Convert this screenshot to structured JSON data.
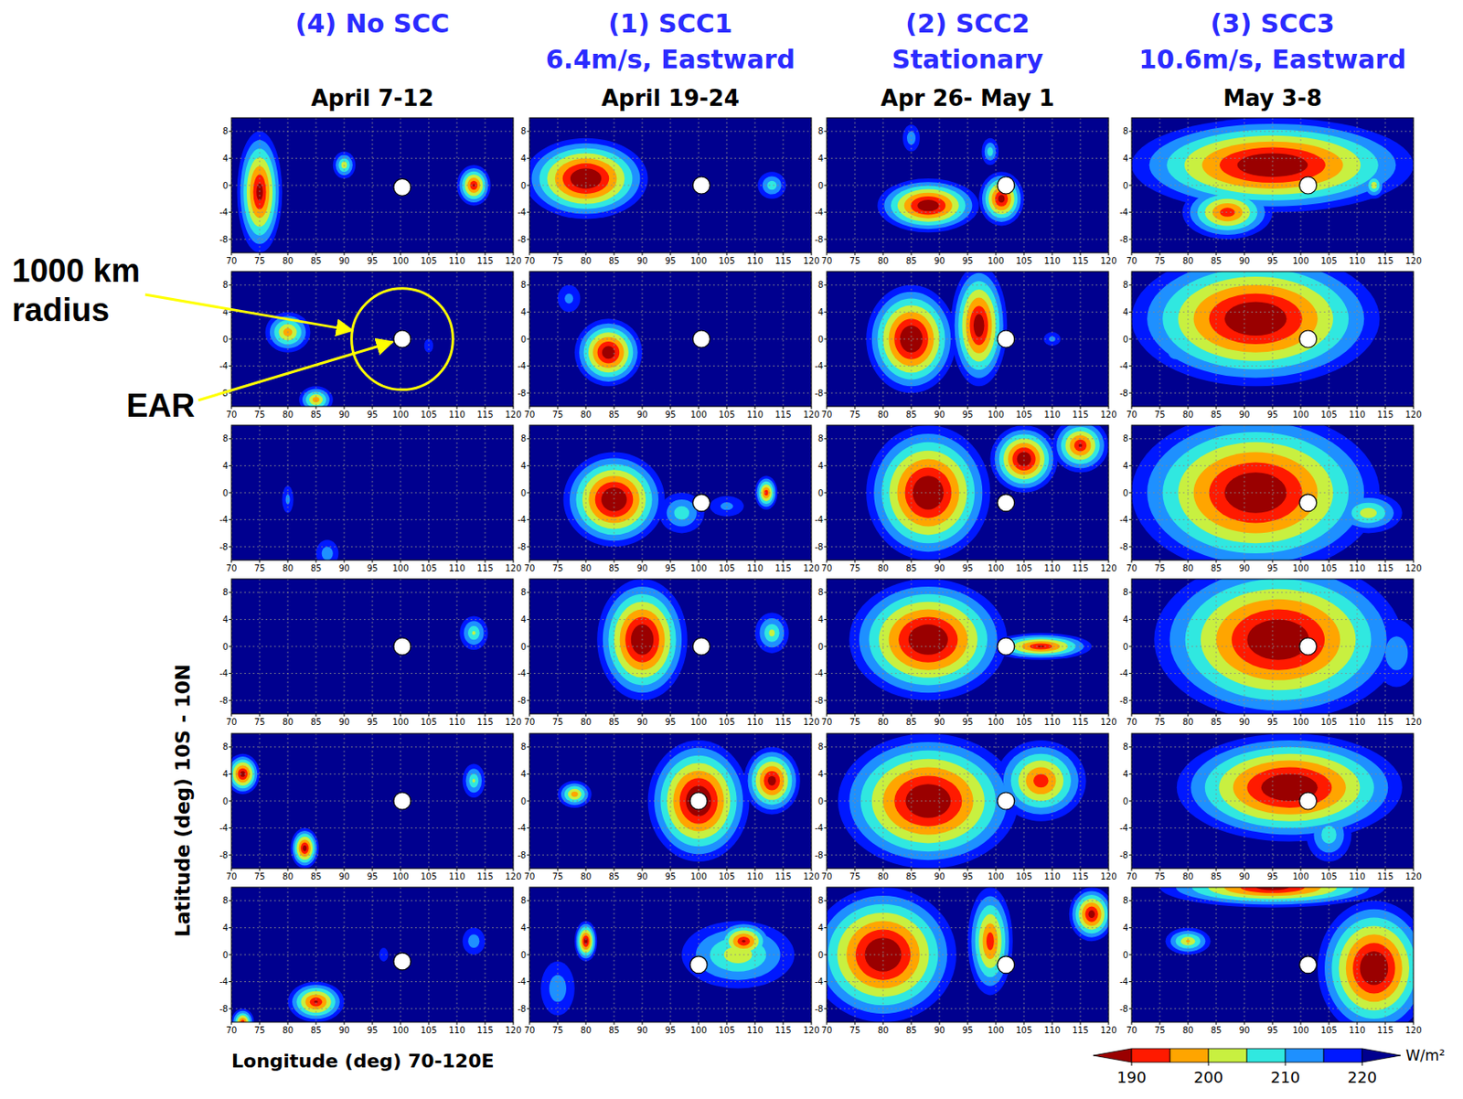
{
  "chart_data": {
    "type": "contour_map",
    "xlabel": "Longitude (deg) 70-120E",
    "ylabel": "Latitude (deg) 10S - 10N",
    "xlim": [
      70,
      120
    ],
    "ylim": [
      -10,
      10
    ],
    "xticks": [
      70,
      75,
      80,
      85,
      90,
      95,
      100,
      105,
      110,
      115,
      120
    ],
    "yticks": [
      -8,
      -4,
      0,
      4,
      8
    ],
    "grid": true,
    "colorbar": {
      "range": [
        185,
        225
      ],
      "levels": [
        190,
        195,
        200,
        205,
        210,
        215,
        220
      ],
      "ticks": [
        190,
        200,
        210,
        220
      ],
      "colors": [
        "#9a0000",
        "#ff1a00",
        "#ffa500",
        "#c8f040",
        "#30e8e0",
        "#1e90ff",
        "#0018ff",
        "#00008f"
      ],
      "unit": "W/m²"
    },
    "annotations": {
      "radius": "1000 km radius",
      "radius_km": 1000,
      "ear": "EAR"
    },
    "columns": [
      {
        "title": "(4) No SCC",
        "dates": "April 7-12"
      },
      {
        "title": "(1) SCC1",
        "subtitle": "6.4m/s, Eastward",
        "dates": "April 19-24"
      },
      {
        "title": "(2) SCC2",
        "subtitle": "Stationary",
        "dates": "Apr 26- May 1"
      },
      {
        "title": "(3) SCC3",
        "subtitle": "10.6m/s, Eastward",
        "dates": "May 3-8"
      }
    ],
    "panels": [
      [
        {
          "ear": [
            100.3,
            -0.3
          ],
          "blobs": [
            {
              "lon": 75,
              "lat": -1,
              "rx": 4,
              "ry": 9,
              "olr": 185
            },
            {
              "lon": 90,
              "lat": 3,
              "rx": 2,
              "ry": 2,
              "olr": 200
            },
            {
              "lon": 113,
              "lat": 0,
              "rx": 3,
              "ry": 3,
              "olr": 188
            }
          ]
        },
        {
          "ear": [
            100.3,
            0
          ],
          "blobs": [
            {
              "lon": 80,
              "lat": 1,
              "rx": 4,
              "ry": 3,
              "olr": 195
            },
            {
              "lon": 85,
              "lat": -9,
              "rx": 3,
              "ry": 2,
              "olr": 195
            },
            {
              "lon": 105,
              "lat": -1,
              "rx": 0.8,
              "ry": 1,
              "olr": 215
            }
          ]
        },
        {
          "blobs": [
            {
              "lon": 80,
              "lat": -1,
              "rx": 1,
              "ry": 2,
              "olr": 212
            },
            {
              "lon": 87,
              "lat": -9,
              "rx": 2,
              "ry": 2,
              "olr": 210
            }
          ]
        },
        {
          "ear": [
            100.3,
            0
          ],
          "blobs": [
            {
              "lon": 113,
              "lat": 2,
              "rx": 2.5,
              "ry": 2.5,
              "olr": 203
            }
          ]
        },
        {
          "ear": [
            100.3,
            0
          ],
          "blobs": [
            {
              "lon": 72,
              "lat": 4,
              "rx": 3,
              "ry": 3,
              "olr": 185
            },
            {
              "lon": 83,
              "lat": -7,
              "rx": 2.5,
              "ry": 3,
              "olr": 185
            },
            {
              "lon": 113,
              "lat": 3,
              "rx": 2,
              "ry": 2.5,
              "olr": 203
            }
          ]
        },
        {
          "ear": [
            100.3,
            -1
          ],
          "blobs": [
            {
              "lon": 85,
              "lat": -7,
              "rx": 5,
              "ry": 3,
              "olr": 188
            },
            {
              "lon": 72,
              "lat": -10,
              "rx": 2,
              "ry": 2,
              "olr": 190
            },
            {
              "lon": 113,
              "lat": 2,
              "rx": 2,
              "ry": 2,
              "olr": 210
            },
            {
              "lon": 97,
              "lat": 0,
              "rx": 0.8,
              "ry": 1,
              "olr": 215
            }
          ]
        }
      ],
      [
        {
          "ear": [
            100.5,
            0
          ],
          "blobs": [
            {
              "lon": 80,
              "lat": 1,
              "rx": 11,
              "ry": 6,
              "olr": 180
            },
            {
              "lon": 113,
              "lat": 0,
              "rx": 2.5,
              "ry": 2,
              "olr": 205
            }
          ]
        },
        {
          "ear": [
            100.5,
            0
          ],
          "blobs": [
            {
              "lon": 84,
              "lat": -2,
              "rx": 6,
              "ry": 5,
              "olr": 183
            },
            {
              "lon": 77,
              "lat": 6,
              "rx": 2,
              "ry": 2,
              "olr": 212
            }
          ]
        },
        {
          "ear": [
            100.5,
            -1.5
          ],
          "blobs": [
            {
              "lon": 85,
              "lat": -1,
              "rx": 9,
              "ry": 7,
              "olr": 180
            },
            {
              "lon": 97,
              "lat": -3,
              "rx": 4,
              "ry": 3,
              "olr": 205
            },
            {
              "lon": 112,
              "lat": 0,
              "rx": 2,
              "ry": 2.5,
              "olr": 190
            },
            {
              "lon": 105,
              "lat": -2,
              "rx": 3,
              "ry": 1.5,
              "olr": 212
            }
          ]
        },
        {
          "ear": [
            100.5,
            0
          ],
          "blobs": [
            {
              "lon": 90,
              "lat": 1,
              "rx": 8,
              "ry": 9,
              "olr": 180
            },
            {
              "lon": 113,
              "lat": 2,
              "rx": 3,
              "ry": 3,
              "olr": 202
            }
          ]
        },
        {
          "ear": [
            100,
            0
          ],
          "blobs": [
            {
              "lon": 100,
              "lat": 0,
              "rx": 9,
              "ry": 9,
              "olr": 180
            },
            {
              "lon": 113,
              "lat": 3,
              "rx": 5,
              "ry": 5,
              "olr": 185
            },
            {
              "lon": 78,
              "lat": 1,
              "rx": 3,
              "ry": 2,
              "olr": 195
            }
          ]
        },
        {
          "ear": [
            100,
            -1.5
          ],
          "blobs": [
            {
              "lon": 107,
              "lat": 0,
              "rx": 10,
              "ry": 5,
              "olr": 200
            },
            {
              "lon": 108,
              "lat": 2,
              "rx": 5,
              "ry": 3,
              "olr": 188
            },
            {
              "lon": 80,
              "lat": 2,
              "rx": 2,
              "ry": 3,
              "olr": 185
            },
            {
              "lon": 75,
              "lat": -5,
              "rx": 3,
              "ry": 4,
              "olr": 210
            }
          ]
        }
      ],
      [
        {
          "ear": [
            101.8,
            0
          ],
          "blobs": [
            {
              "lon": 88,
              "lat": -3,
              "rx": 9,
              "ry": 4,
              "olr": 182
            },
            {
              "lon": 101,
              "lat": -2,
              "rx": 4,
              "ry": 4,
              "olr": 185
            },
            {
              "lon": 99,
              "lat": 5,
              "rx": 1.5,
              "ry": 2,
              "olr": 205
            },
            {
              "lon": 85,
              "lat": 7,
              "rx": 1.5,
              "ry": 2,
              "olr": 210
            }
          ]
        },
        {
          "ear": [
            101.8,
            0
          ],
          "blobs": [
            {
              "lon": 85,
              "lat": 0,
              "rx": 8,
              "ry": 8,
              "olr": 180
            },
            {
              "lon": 97,
              "lat": 2,
              "rx": 5,
              "ry": 9,
              "olr": 183
            },
            {
              "lon": 110,
              "lat": 0,
              "rx": 1.5,
              "ry": 1,
              "olr": 212
            }
          ]
        },
        {
          "ear": [
            101.8,
            -1.5
          ],
          "blobs": [
            {
              "lon": 88,
              "lat": 0,
              "rx": 11,
              "ry": 10,
              "olr": 180
            },
            {
              "lon": 105,
              "lat": 5,
              "rx": 6,
              "ry": 5,
              "olr": 182
            },
            {
              "lon": 115,
              "lat": 7,
              "rx": 5,
              "ry": 4,
              "olr": 188
            }
          ]
        },
        {
          "ear": [
            101.8,
            0
          ],
          "blobs": [
            {
              "lon": 88,
              "lat": 1,
              "rx": 14,
              "ry": 9,
              "olr": 180
            },
            {
              "lon": 108,
              "lat": 0,
              "rx": 9,
              "ry": 2,
              "olr": 188
            }
          ]
        },
        {
          "ear": [
            101.8,
            0
          ],
          "blobs": [
            {
              "lon": 88,
              "lat": 0,
              "rx": 16,
              "ry": 10,
              "olr": 180
            },
            {
              "lon": 108,
              "lat": 3,
              "rx": 8,
              "ry": 6,
              "olr": 190
            }
          ]
        },
        {
          "ear": [
            101.8,
            -1.5
          ],
          "blobs": [
            {
              "lon": 80,
              "lat": 0,
              "rx": 13,
              "ry": 10,
              "olr": 180
            },
            {
              "lon": 99,
              "lat": 2,
              "rx": 4,
              "ry": 8,
              "olr": 190
            },
            {
              "lon": 117,
              "lat": 6,
              "rx": 4,
              "ry": 4,
              "olr": 185
            }
          ]
        }
      ],
      [
        {
          "ear": [
            101.3,
            0
          ],
          "blobs": [
            {
              "lon": 95,
              "lat": 3,
              "rx": 25,
              "ry": 7,
              "olr": 180
            },
            {
              "lon": 87,
              "lat": -4,
              "rx": 8,
              "ry": 4,
              "olr": 190
            },
            {
              "lon": 113,
              "lat": 0,
              "rx": 2,
              "ry": 2,
              "olr": 200
            }
          ]
        },
        {
          "ear": [
            101.3,
            0
          ],
          "blobs": [
            {
              "lon": 92,
              "lat": 3,
              "rx": 22,
              "ry": 10,
              "olr": 180
            },
            {
              "lon": 78,
              "lat": -2,
              "rx": 3,
              "ry": 2,
              "olr": 210
            }
          ]
        },
        {
          "ear": [
            101.3,
            -1.5
          ],
          "blobs": [
            {
              "lon": 92,
              "lat": 0,
              "rx": 22,
              "ry": 12,
              "olr": 180
            },
            {
              "lon": 112,
              "lat": -3,
              "rx": 6,
              "ry": 3,
              "olr": 200
            }
          ]
        },
        {
          "ear": [
            101.3,
            0
          ],
          "blobs": [
            {
              "lon": 96,
              "lat": 1,
              "rx": 22,
              "ry": 12,
              "olr": 180
            },
            {
              "lon": 117,
              "lat": -1,
              "rx": 4,
              "ry": 5,
              "olr": 210
            }
          ]
        },
        {
          "ear": [
            101.3,
            0
          ],
          "blobs": [
            {
              "lon": 98,
              "lat": 2,
              "rx": 20,
              "ry": 8,
              "olr": 180
            },
            {
              "lon": 105,
              "lat": -5,
              "rx": 4,
              "ry": 4,
              "olr": 205
            }
          ]
        },
        {
          "ear": [
            101.3,
            -1.5
          ],
          "blobs": [
            {
              "lon": 113,
              "lat": -2,
              "rx": 10,
              "ry": 10,
              "olr": 180
            },
            {
              "lon": 95,
              "lat": 10,
              "rx": 20,
              "ry": 3,
              "olr": 185
            },
            {
              "lon": 80,
              "lat": 2,
              "rx": 4,
              "ry": 2,
              "olr": 198
            }
          ]
        }
      ]
    ]
  }
}
